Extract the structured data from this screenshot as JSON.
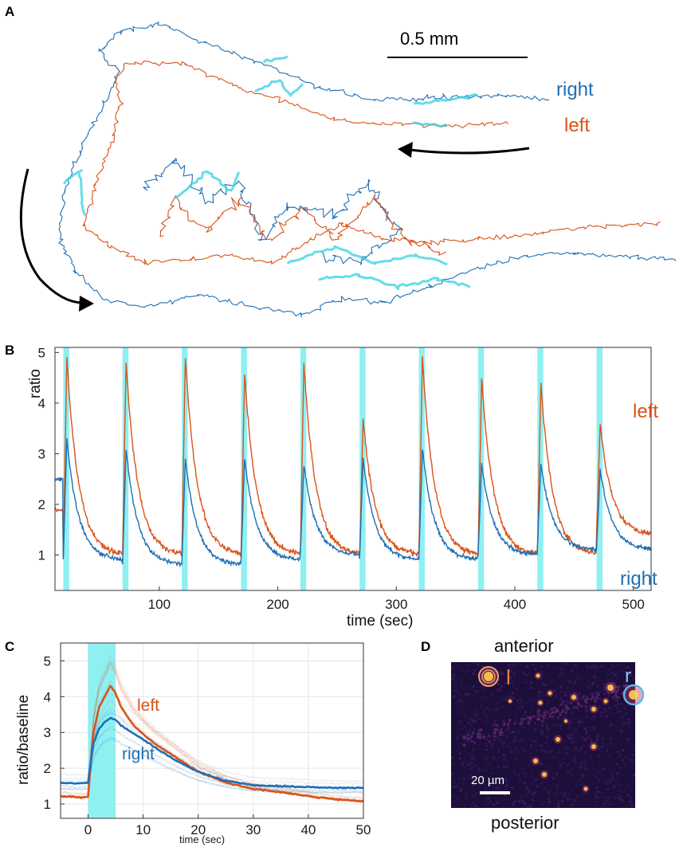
{
  "panels": {
    "a": {
      "label": "A",
      "scale_bar": "0.5 mm",
      "right_label": "right",
      "left_label": "left"
    },
    "d": {
      "label": "D",
      "top_label": "anterior",
      "bottom_label": "posterior",
      "scale_bar": "20 µm",
      "left_roi": "l",
      "right_roi": "r"
    }
  },
  "colors": {
    "left": "#d95319",
    "right": "#1f6fb4",
    "stim": "#8ff0f2",
    "stim_track": "#33d0e0"
  },
  "chart_data": [
    {
      "panel": "B",
      "type": "line",
      "title": "",
      "xlabel": "time (sec)",
      "ylabel": "ratio",
      "xlim": [
        12,
        515
      ],
      "ylim": [
        0.3,
        5.1
      ],
      "xticks": [
        100,
        200,
        300,
        400,
        500
      ],
      "yticks": [
        1,
        2,
        3,
        4,
        5
      ],
      "stim_onsets": [
        19,
        69,
        119,
        169,
        219,
        269,
        319,
        369,
        419,
        469
      ],
      "stim_duration": 5,
      "series_labels": {
        "left": "left",
        "right": "right"
      },
      "left_peaks": [
        4.9,
        4.8,
        4.9,
        4.6,
        4.8,
        3.7,
        4.9,
        4.5,
        4.4,
        3.6
      ],
      "right_peaks": [
        3.3,
        3.1,
        2.9,
        2.9,
        2.8,
        2.9,
        3.1,
        2.8,
        2.8,
        2.7
      ],
      "left_baselines": [
        1.8,
        1.0,
        1.0,
        1.0,
        1.0,
        1.0,
        1.0,
        1.0,
        1.0,
        1.0
      ],
      "right_baselines": [
        2.4,
        0.9,
        0.8,
        0.8,
        0.9,
        1.0,
        0.9,
        0.9,
        1.0,
        1.1
      ],
      "left_end": 1.4,
      "right_end": 1.1
    },
    {
      "panel": "C",
      "type": "line",
      "title": "",
      "xlabel": "time (sec)",
      "ylabel": "ratio/baseline",
      "xlim": [
        -5,
        50
      ],
      "ylim": [
        0.6,
        5.5
      ],
      "xticks": [
        0,
        10,
        20,
        30,
        40,
        50
      ],
      "yticks": [
        1,
        2,
        3,
        4,
        5
      ],
      "grid": true,
      "stim_window": [
        0,
        5
      ],
      "series": [
        {
          "name": "left",
          "x": [
            -5,
            -3,
            -1,
            0,
            0.5,
            1,
            2,
            3,
            4,
            5,
            6,
            8,
            10,
            12,
            15,
            18,
            20,
            25,
            30,
            35,
            40,
            45,
            50
          ],
          "values": [
            1.22,
            1.2,
            1.18,
            1.2,
            2.2,
            3.0,
            3.7,
            4.0,
            4.3,
            4.1,
            3.7,
            3.25,
            2.95,
            2.7,
            2.4,
            2.1,
            1.9,
            1.6,
            1.42,
            1.33,
            1.22,
            1.13,
            1.08
          ]
        },
        {
          "name": "right",
          "x": [
            -5,
            -3,
            -1,
            0,
            0.5,
            1,
            2,
            3,
            4,
            5,
            6,
            8,
            10,
            12,
            15,
            18,
            20,
            25,
            30,
            35,
            40,
            45,
            50
          ],
          "values": [
            1.6,
            1.58,
            1.58,
            1.6,
            2.2,
            2.7,
            3.1,
            3.3,
            3.4,
            3.35,
            3.2,
            3.0,
            2.8,
            2.6,
            2.3,
            2.05,
            1.9,
            1.65,
            1.52,
            1.5,
            1.47,
            1.45,
            1.45
          ]
        }
      ]
    }
  ]
}
